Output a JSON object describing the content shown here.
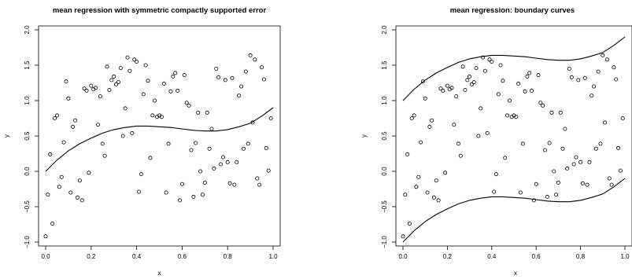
{
  "chart_data": [
    {
      "type": "scatter",
      "title": "mean regression with symmetric compactly supported error",
      "xlabel": "x",
      "ylabel": "y",
      "xlim": [
        0,
        1
      ],
      "ylim": [
        -1,
        2
      ],
      "xticks": [
        "0.0",
        "0.2",
        "0.4",
        "0.6",
        "0.8",
        "1.0"
      ],
      "yticks": [
        "−1.0",
        "−0.5",
        "0.0",
        "0.5",
        "1.0",
        "1.5",
        "2.0"
      ],
      "grid": false,
      "series": [
        {
          "kind": "points",
          "x": [
            0.0,
            0.01,
            0.02,
            0.03,
            0.04,
            0.05,
            0.06,
            0.07,
            0.08,
            0.09,
            0.1,
            0.11,
            0.12,
            0.13,
            0.14,
            0.15,
            0.16,
            0.17,
            0.18,
            0.19,
            0.2,
            0.21,
            0.22,
            0.23,
            0.24,
            0.25,
            0.26,
            0.27,
            0.28,
            0.29,
            0.3,
            0.31,
            0.32,
            0.33,
            0.34,
            0.35,
            0.36,
            0.37,
            0.38,
            0.39,
            0.4,
            0.41,
            0.42,
            0.43,
            0.44,
            0.45,
            0.46,
            0.47,
            0.48,
            0.49,
            0.5,
            0.51,
            0.52,
            0.53,
            0.54,
            0.55,
            0.56,
            0.57,
            0.58,
            0.59,
            0.6,
            0.61,
            0.62,
            0.63,
            0.64,
            0.65,
            0.66,
            0.67,
            0.68,
            0.69,
            0.7,
            0.71,
            0.72,
            0.73,
            0.74,
            0.75,
            0.76,
            0.77,
            0.78,
            0.79,
            0.8,
            0.81,
            0.82,
            0.83,
            0.84,
            0.85,
            0.86,
            0.87,
            0.88,
            0.89,
            0.9,
            0.91,
            0.92,
            0.93,
            0.94,
            0.95,
            0.96,
            0.97,
            0.98,
            0.99
          ],
          "y": [
            -0.92,
            -0.33,
            0.24,
            -0.74,
            0.75,
            0.79,
            -0.22,
            -0.08,
            0.41,
            1.27,
            1.03,
            -0.3,
            0.63,
            0.72,
            -0.37,
            -0.13,
            -0.41,
            1.17,
            1.14,
            -0.02,
            1.21,
            1.16,
            1.18,
            0.66,
            1.06,
            0.39,
            0.22,
            1.48,
            1.15,
            1.29,
            1.34,
            1.23,
            1.26,
            1.46,
            0.5,
            0.89,
            1.61,
            1.42,
            0.54,
            1.58,
            1.55,
            -0.29,
            -0.04,
            1.09,
            1.5,
            1.28,
            0.19,
            0.79,
            1.0,
            0.77,
            0.79,
            0.77,
            1.24,
            -0.3,
            0.39,
            1.13,
            1.34,
            1.39,
            1.14,
            -0.41,
            -0.18,
            1.36,
            0.97,
            0.93,
            0.3,
            -0.36,
            0.4,
            0.83,
            0.0,
            -0.33,
            -0.16,
            0.83,
            0.32,
            0.6,
            0.04,
            1.45,
            1.33,
            0.1,
            0.2,
            1.29,
            0.13,
            -0.17,
            1.32,
            -0.19,
            0.13,
            1.07,
            1.2,
            0.32,
            1.41,
            0.39,
            1.64,
            0.69,
            1.58,
            -0.1,
            -0.19,
            1.47,
            1.3,
            0.33,
            0.01,
            0.75
          ]
        },
        {
          "kind": "line",
          "x": [
            0.0,
            0.05,
            0.1,
            0.15,
            0.2,
            0.25,
            0.3,
            0.35,
            0.4,
            0.45,
            0.5,
            0.55,
            0.6,
            0.65,
            0.7,
            0.75,
            0.8,
            0.85,
            0.9,
            0.95,
            1.0
          ],
          "y": [
            0.0,
            0.16,
            0.29,
            0.39,
            0.47,
            0.54,
            0.59,
            0.62,
            0.64,
            0.64,
            0.63,
            0.62,
            0.6,
            0.58,
            0.57,
            0.57,
            0.59,
            0.63,
            0.68,
            0.78,
            0.9
          ]
        }
      ]
    },
    {
      "type": "scatter",
      "title": "mean regression: boundary curves",
      "xlabel": "x",
      "ylabel": "y",
      "xlim": [
        0,
        1
      ],
      "ylim": [
        -1,
        2
      ],
      "xticks": [
        "0.0",
        "0.2",
        "0.4",
        "0.6",
        "0.8",
        "1.0"
      ],
      "yticks": [
        "−1.0",
        "−0.5",
        "0.0",
        "0.5",
        "1.0",
        "1.5",
        "2.0"
      ],
      "grid": false,
      "series": [
        {
          "kind": "points",
          "x": [
            0.0,
            0.01,
            0.02,
            0.03,
            0.04,
            0.05,
            0.06,
            0.07,
            0.08,
            0.09,
            0.1,
            0.11,
            0.12,
            0.13,
            0.14,
            0.15,
            0.16,
            0.17,
            0.18,
            0.19,
            0.2,
            0.21,
            0.22,
            0.23,
            0.24,
            0.25,
            0.26,
            0.27,
            0.28,
            0.29,
            0.3,
            0.31,
            0.32,
            0.33,
            0.34,
            0.35,
            0.36,
            0.37,
            0.38,
            0.39,
            0.4,
            0.41,
            0.42,
            0.43,
            0.44,
            0.45,
            0.46,
            0.47,
            0.48,
            0.49,
            0.5,
            0.51,
            0.52,
            0.53,
            0.54,
            0.55,
            0.56,
            0.57,
            0.58,
            0.59,
            0.6,
            0.61,
            0.62,
            0.63,
            0.64,
            0.65,
            0.66,
            0.67,
            0.68,
            0.69,
            0.7,
            0.71,
            0.72,
            0.73,
            0.74,
            0.75,
            0.76,
            0.77,
            0.78,
            0.79,
            0.8,
            0.81,
            0.82,
            0.83,
            0.84,
            0.85,
            0.86,
            0.87,
            0.88,
            0.89,
            0.9,
            0.91,
            0.92,
            0.93,
            0.94,
            0.95,
            0.96,
            0.97,
            0.98,
            0.99
          ],
          "y": [
            -0.92,
            -0.33,
            0.24,
            -0.74,
            0.75,
            0.79,
            -0.22,
            -0.08,
            0.41,
            1.27,
            1.03,
            -0.3,
            0.63,
            0.72,
            -0.37,
            -0.13,
            -0.41,
            1.17,
            1.14,
            -0.02,
            1.21,
            1.16,
            1.18,
            0.66,
            1.06,
            0.39,
            0.22,
            1.48,
            1.15,
            1.29,
            1.34,
            1.23,
            1.26,
            1.46,
            0.5,
            0.89,
            1.61,
            1.42,
            0.54,
            1.58,
            1.55,
            -0.29,
            -0.04,
            1.09,
            1.5,
            1.28,
            0.19,
            0.79,
            1.0,
            0.77,
            0.79,
            0.77,
            1.24,
            -0.3,
            0.39,
            1.13,
            1.34,
            1.39,
            1.14,
            -0.41,
            -0.18,
            1.36,
            0.97,
            0.93,
            0.3,
            -0.36,
            0.4,
            0.83,
            0.0,
            -0.33,
            -0.16,
            0.83,
            0.32,
            0.6,
            0.04,
            1.45,
            1.33,
            0.1,
            0.2,
            1.29,
            0.13,
            -0.17,
            1.32,
            -0.19,
            0.13,
            1.07,
            1.2,
            0.32,
            1.41,
            0.39,
            1.64,
            0.69,
            1.58,
            -0.1,
            -0.19,
            1.47,
            1.3,
            0.33,
            0.01,
            0.75
          ]
        },
        {
          "kind": "line",
          "x": [
            0.0,
            0.05,
            0.1,
            0.15,
            0.2,
            0.25,
            0.3,
            0.35,
            0.4,
            0.45,
            0.5,
            0.55,
            0.6,
            0.65,
            0.7,
            0.75,
            0.8,
            0.85,
            0.9,
            0.95,
            1.0
          ],
          "y": [
            1.0,
            1.16,
            1.29,
            1.39,
            1.47,
            1.54,
            1.59,
            1.62,
            1.64,
            1.64,
            1.63,
            1.62,
            1.6,
            1.58,
            1.57,
            1.57,
            1.59,
            1.63,
            1.68,
            1.78,
            1.9
          ]
        },
        {
          "kind": "line",
          "x": [
            0.0,
            0.05,
            0.1,
            0.15,
            0.2,
            0.25,
            0.3,
            0.35,
            0.4,
            0.45,
            0.5,
            0.55,
            0.6,
            0.65,
            0.7,
            0.75,
            0.8,
            0.85,
            0.9,
            0.95,
            1.0
          ],
          "y": [
            -1.0,
            -0.84,
            -0.71,
            -0.61,
            -0.53,
            -0.46,
            -0.41,
            -0.38,
            -0.36,
            -0.36,
            -0.37,
            -0.38,
            -0.4,
            -0.42,
            -0.43,
            -0.43,
            -0.41,
            -0.37,
            -0.32,
            -0.22,
            -0.1
          ]
        }
      ]
    }
  ]
}
